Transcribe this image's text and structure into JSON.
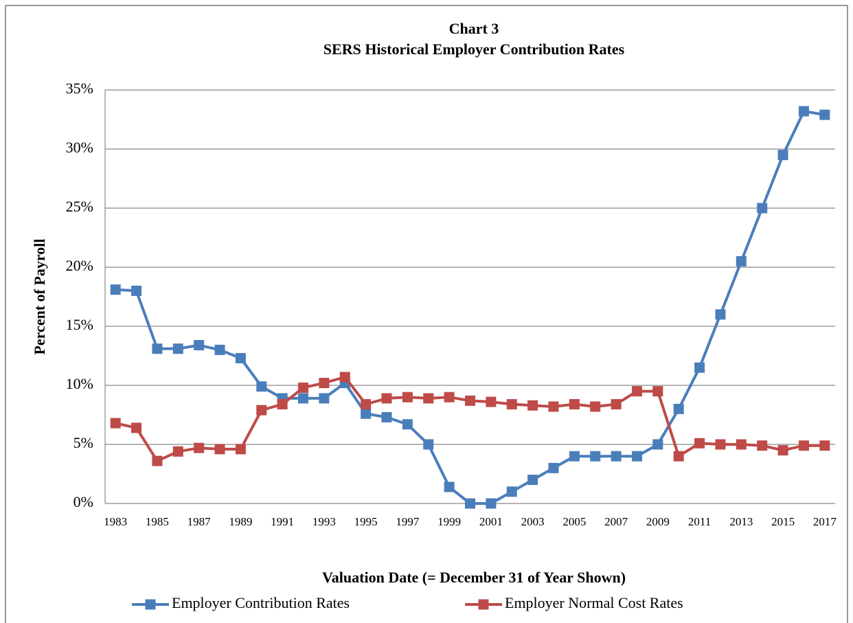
{
  "chart_data": {
    "type": "line",
    "title": "Chart 3",
    "subtitle": "SERS Historical Employer Contribution Rates",
    "y_label": "Percent of Payroll",
    "x_label": "Valuation Date (= December 31 of Year Shown)",
    "categories": [
      "1983",
      null,
      "1985",
      null,
      "1987",
      null,
      "1989",
      null,
      "1991",
      null,
      "1993",
      null,
      "1995",
      null,
      "1997",
      null,
      "1999",
      null,
      "2001",
      null,
      "2003",
      null,
      "2005",
      null,
      "2007",
      null,
      "2009",
      null,
      "2011",
      null,
      "2013",
      null,
      "2015",
      null,
      "2017"
    ],
    "series": [
      {
        "name": "Employer Contribution Rates",
        "color": "#4a7ebb",
        "values": [
          18.1,
          18.0,
          13.1,
          13.1,
          13.4,
          13.0,
          12.3,
          9.9,
          8.9,
          8.9,
          8.9,
          10.2,
          7.6,
          7.3,
          6.7,
          5.0,
          1.4,
          0,
          0,
          1.0,
          2.0,
          3.0,
          4.0,
          4.0,
          4.0,
          4.0,
          5.0,
          8.0,
          11.5,
          16.0,
          20.5,
          25.0,
          29.5,
          33.2,
          32.9
        ]
      },
      {
        "name": "Employer Normal Cost Rates",
        "color": "#be4b48",
        "values": [
          6.8,
          6.4,
          3.6,
          4.4,
          4.7,
          4.6,
          4.6,
          7.9,
          8.4,
          9.8,
          10.2,
          10.7,
          8.4,
          8.9,
          9.0,
          8.9,
          9.0,
          8.7,
          8.6,
          8.4,
          8.3,
          8.2,
          8.4,
          8.2,
          8.4,
          9.5,
          9.5,
          4.0,
          5.1,
          5.0,
          5.0,
          4.9,
          4.5,
          4.9,
          4.9
        ]
      }
    ],
    "ylim": [
      0,
      35
    ],
    "yticks": [
      {
        "value": 0,
        "label": "0%"
      },
      {
        "value": 5,
        "label": "5%"
      },
      {
        "value": 10,
        "label": "10%"
      },
      {
        "value": 15,
        "label": "15%"
      },
      {
        "value": 20,
        "label": "20%"
      },
      {
        "value": 25,
        "label": "25%"
      },
      {
        "value": 30,
        "label": "30%"
      },
      {
        "value": 35,
        "label": "35%"
      }
    ],
    "grid": true,
    "legend": "bottom"
  }
}
